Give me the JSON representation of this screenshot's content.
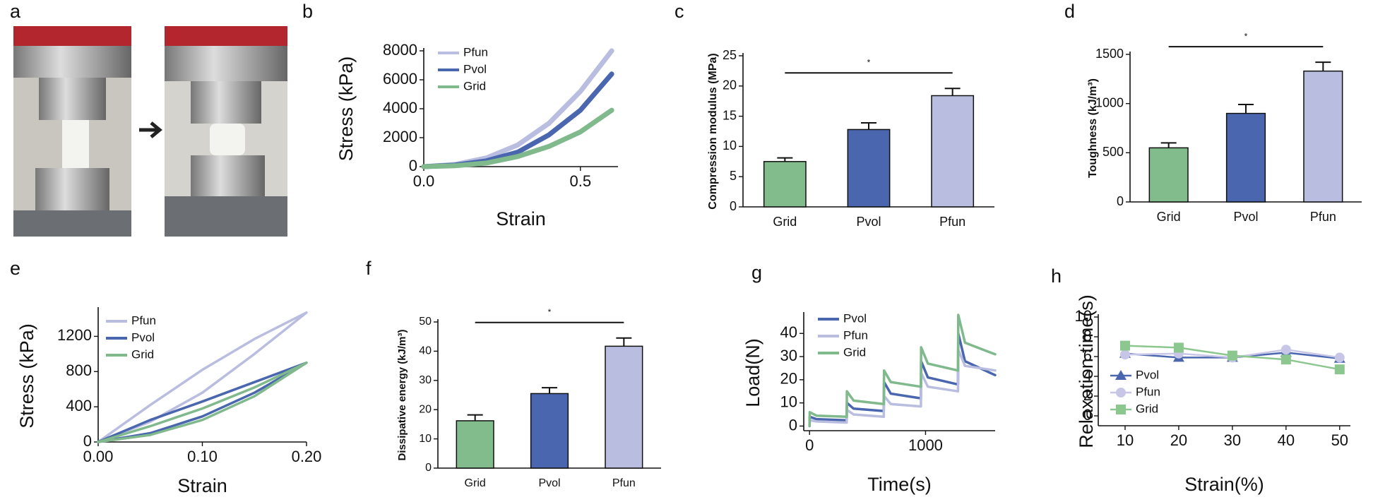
{
  "panel_labels": [
    "a",
    "b",
    "c",
    "d",
    "e",
    "f",
    "g",
    "h"
  ],
  "chart_data": [
    {
      "type": "line",
      "xlabel": "Strain",
      "ylabel": "Stress (kPa)",
      "x": [
        0,
        0.1,
        0.2,
        0.3,
        0.4,
        0.5,
        0.6
      ],
      "series": [
        {
          "name": "Pfun",
          "color": "#b9bde0",
          "values": [
            0,
            150,
            600,
            1500,
            3000,
            5200,
            8000
          ]
        },
        {
          "name": "Pvol",
          "color": "#4a66ae",
          "values": [
            0,
            100,
            400,
            1000,
            2200,
            3900,
            6400
          ]
        },
        {
          "name": "Grid",
          "color": "#7fb98c",
          "values": [
            0,
            60,
            250,
            700,
            1400,
            2400,
            3900
          ]
        }
      ],
      "xlim": [
        0,
        0.62
      ],
      "xticks": [
        {
          "value": 0,
          "label": "0.0"
        },
        0.5
      ],
      "ylim": [
        0,
        8000
      ],
      "yticks": [
        0,
        2000,
        4000,
        6000,
        8000
      ]
    },
    {
      "type": "bar",
      "ylabel": "Compression modulus (MPa)",
      "annotation": "*",
      "categories": [
        "Grid",
        "Pvol",
        "Pfun"
      ],
      "values": [
        7.5,
        12.8,
        18.4
      ],
      "errors": [
        0.6,
        1.1,
        1.2
      ],
      "colors": [
        "#82bc8c",
        "#4a66ae",
        "#b9bde0"
      ],
      "ylim": [
        0,
        25
      ],
      "yticks": [
        0,
        5,
        10,
        15,
        20,
        25
      ]
    },
    {
      "type": "bar",
      "ylabel": "Toughness (kJ/m³)",
      "annotation": "*",
      "categories": [
        "Grid",
        "Pvol",
        "Pfun"
      ],
      "values": [
        550,
        900,
        1330
      ],
      "errors": [
        50,
        90,
        90
      ],
      "colors": [
        "#82bc8c",
        "#4a66ae",
        "#b9bde0"
      ],
      "ylim": [
        0,
        1500
      ],
      "yticks": [
        0,
        500,
        1000,
        1500
      ]
    },
    {
      "type": "line",
      "xlabel": "Strain",
      "ylabel": "Stress (kPa)",
      "x": [
        0,
        0.05,
        0.1,
        0.15,
        0.2,
        0.15,
        0.1,
        0.05,
        0
      ],
      "series": [
        {
          "name": "Pfun",
          "color": "#b9bde0",
          "values": [
            0,
            420,
            820,
            1170,
            1470,
            1000,
            560,
            230,
            0
          ]
        },
        {
          "name": "Pvol",
          "color": "#4a66ae",
          "values": [
            0,
            250,
            460,
            680,
            900,
            560,
            290,
            100,
            0
          ]
        },
        {
          "name": "Grid",
          "color": "#7fb98c",
          "values": [
            0,
            180,
            380,
            620,
            900,
            520,
            250,
            80,
            0
          ]
        }
      ],
      "xlim": [
        0,
        0.2
      ],
      "xticks": [
        {
          "value": 0,
          "label": "0.00"
        },
        {
          "value": 0.1,
          "label": "0.10"
        },
        {
          "value": 0.2,
          "label": "0.20"
        }
      ],
      "ylim": [
        0,
        1500
      ],
      "yticks": [
        0,
        400,
        800,
        1200
      ]
    },
    {
      "type": "bar",
      "ylabel": "Dissipative energy (kJ/m³)",
      "annotation": "*",
      "categories": [
        "Grid",
        "Pvol",
        "Pfun"
      ],
      "values": [
        16.2,
        25.5,
        41.7
      ],
      "errors": [
        2,
        2,
        2.8
      ],
      "colors": [
        "#82bc8c",
        "#4a66ae",
        "#b9bde0"
      ],
      "ylim": [
        0,
        50
      ],
      "yticks": [
        0,
        10,
        20,
        30,
        40,
        50
      ]
    },
    {
      "type": "line",
      "xlabel": "Time(s)",
      "ylabel": "Load(N)",
      "x": [
        0,
        2,
        60,
        318,
        320,
        322,
        380,
        638,
        640,
        642,
        700,
        958,
        960,
        962,
        1020,
        1278,
        1280,
        1282,
        1340,
        1600
      ],
      "series": [
        {
          "name": "Pvol",
          "color": "#4a66ae",
          "values": [
            0,
            4,
            3,
            2.5,
            2.5,
            10,
            7.5,
            6.5,
            6.5,
            19,
            14,
            12,
            12,
            28,
            21,
            18,
            18,
            40,
            28,
            22
          ]
        },
        {
          "name": "Pfun",
          "color": "#b9bde0",
          "values": [
            0,
            2.5,
            2,
            1.5,
            1.5,
            7,
            5,
            4,
            4,
            13,
            9.5,
            8.5,
            8.5,
            23,
            17,
            15,
            15,
            33,
            26,
            24
          ]
        },
        {
          "name": "Grid",
          "color": "#7fb98c",
          "values": [
            0,
            6,
            4.5,
            4,
            4,
            15,
            11,
            9.5,
            9.5,
            24,
            19,
            17,
            17,
            34,
            27,
            24,
            24,
            48,
            36,
            31
          ]
        }
      ],
      "xlim": [
        -50,
        1600
      ],
      "xticks": [
        0,
        1000
      ],
      "ylim": [
        -2,
        48
      ],
      "yticks": [
        0,
        10,
        20,
        30,
        40
      ]
    },
    {
      "type": "line",
      "xlabel": "Strain(%)",
      "ylabel": "Relaxation time(s)",
      "x": [
        10,
        20,
        30,
        40,
        50
      ],
      "series": [
        {
          "name": "Pvol",
          "color": "#4a66ae",
          "marker": "triangle",
          "values": [
            6.3,
            5.9,
            5.9,
            6.4,
            5.8
          ]
        },
        {
          "name": "Pfun",
          "color": "#c8c6e6",
          "marker": "circle",
          "values": [
            6.2,
            6.3,
            5.9,
            6.7,
            5.9
          ]
        },
        {
          "name": "Grid",
          "color": "#8cc78f",
          "marker": "square",
          "values": [
            7.1,
            6.9,
            6.1,
            5.7,
            4.7
          ]
        }
      ],
      "xlim": [
        5,
        52
      ],
      "xticks": [
        10,
        20,
        30,
        40,
        50
      ],
      "ylim": [
        -1,
        10
      ],
      "yticks": [
        0,
        2,
        4,
        6,
        8,
        10
      ]
    }
  ]
}
